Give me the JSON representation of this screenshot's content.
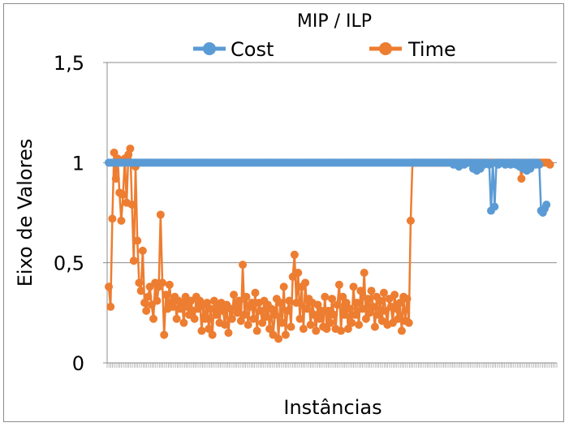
{
  "chart_data": {
    "type": "line",
    "title": "MIP / ILP",
    "xlabel": "Instâncias",
    "ylabel": "Eixo de Valores",
    "ylim": [
      0,
      1.5
    ],
    "yticks": [
      "0",
      "0,5",
      "1",
      "1,5"
    ],
    "y_tick_values": [
      0,
      0.5,
      1,
      1.5
    ],
    "grid": "horizontal",
    "legend": "top",
    "n_points": 250,
    "series": [
      {
        "name": "Cost",
        "color": "#5b9bd5",
        "values": [
          1,
          1,
          1,
          1,
          1,
          1,
          1,
          1,
          1,
          1,
          1,
          1,
          1,
          1,
          1,
          1,
          1,
          1,
          1,
          1,
          1,
          1,
          1,
          1,
          1,
          1,
          1,
          1,
          1,
          1,
          1,
          1,
          1,
          1,
          1,
          1,
          1,
          1,
          1,
          1,
          1,
          1,
          1,
          1,
          1,
          1,
          1,
          1,
          1,
          1,
          1,
          1,
          1,
          1,
          1,
          1,
          1,
          1,
          1,
          1,
          1,
          1,
          1,
          1,
          1,
          1,
          1,
          1,
          1,
          1,
          1,
          1,
          1,
          1,
          1,
          1,
          1,
          1,
          1,
          1,
          1,
          1,
          1,
          1,
          1,
          1,
          1,
          1,
          1,
          1,
          1,
          1,
          1,
          1,
          1,
          1,
          1,
          1,
          1,
          1,
          1,
          1,
          1,
          1,
          1,
          1,
          1,
          1,
          1,
          1,
          1,
          1,
          1,
          1,
          1,
          1,
          1,
          1,
          1,
          1,
          1,
          1,
          1,
          1,
          1,
          1,
          1,
          1,
          1,
          1,
          1,
          1,
          1,
          1,
          1,
          1,
          1,
          1,
          1,
          1,
          1,
          1,
          1,
          1,
          1,
          1,
          1,
          1,
          1,
          1,
          1,
          1,
          1,
          1,
          1,
          1,
          1,
          1,
          1,
          1,
          1,
          1,
          1,
          1,
          1,
          1,
          1,
          1,
          1,
          1,
          1,
          1,
          1,
          1,
          1,
          1,
          1,
          1,
          1,
          1,
          1,
          1,
          1,
          1,
          1,
          1,
          1,
          1,
          1,
          1,
          1,
          1,
          1,
          0.99,
          1,
          1,
          0.98,
          1,
          1,
          0.99,
          1,
          1,
          1,
          1,
          0.97,
          1,
          0.96,
          1,
          0.97,
          1,
          0.99,
          1,
          1,
          0.99,
          0.76,
          1,
          0.78,
          1,
          0.99,
          1,
          1,
          1,
          0.99,
          1,
          1,
          0.99,
          1,
          1,
          0.99,
          1,
          0.98,
          1,
          0.97,
          1,
          0.96,
          1,
          0.97,
          1,
          1,
          0.99,
          1,
          0.99,
          0.76,
          0.75,
          0.77,
          0.79
        ]
      },
      {
        "name": "Time",
        "color": "#ed7d31",
        "values": [
          0.38,
          0.28,
          0.72,
          1.05,
          0.92,
          1.02,
          0.85,
          0.71,
          0.84,
          1.02,
          0.8,
          1.04,
          1.07,
          0.79,
          0.51,
          0.98,
          0.61,
          0.4,
          0.36,
          0.56,
          0.3,
          0.26,
          0.33,
          0.38,
          0.29,
          0.22,
          0.4,
          0.31,
          0.38,
          0.74,
          0.4,
          0.14,
          0.34,
          0.27,
          0.39,
          0.3,
          0.28,
          0.33,
          0.22,
          0.31,
          0.27,
          0.3,
          0.2,
          0.33,
          0.28,
          0.24,
          0.31,
          0.26,
          0.22,
          0.33,
          0.27,
          0.31,
          0.16,
          0.29,
          0.22,
          0.3,
          0.17,
          0.27,
          0.14,
          0.31,
          0.24,
          0.28,
          0.2,
          0.3,
          0.26,
          0.19,
          0.29,
          0.15,
          0.27,
          0.22,
          0.34,
          0.28,
          0.25,
          0.31,
          0.21,
          0.49,
          0.24,
          0.33,
          0.19,
          0.28,
          0.3,
          0.22,
          0.35,
          0.16,
          0.3,
          0.26,
          0.2,
          0.31,
          0.23,
          0.29,
          0.17,
          0.27,
          0.14,
          0.24,
          0.32,
          0.12,
          0.3,
          0.2,
          0.38,
          0.14,
          0.26,
          0.31,
          0.18,
          0.43,
          0.54,
          0.3,
          0.45,
          0.22,
          0.38,
          0.17,
          0.4,
          0.27,
          0.32,
          0.19,
          0.3,
          0.24,
          0.16,
          0.29,
          0.22,
          0.26,
          0.18,
          0.33,
          0.17,
          0.26,
          0.2,
          0.32,
          0.24,
          0.17,
          0.29,
          0.39,
          0.16,
          0.33,
          0.24,
          0.3,
          0.17,
          0.27,
          0.2,
          0.38,
          0.24,
          0.3,
          0.19,
          0.36,
          0.27,
          0.45,
          0.22,
          0.32,
          0.25,
          0.36,
          0.28,
          0.18,
          0.33,
          0.24,
          0.31,
          0.21,
          0.35,
          0.26,
          0.19,
          0.32,
          0.28,
          0.2,
          0.34,
          0.27,
          0.22,
          0.3,
          0.16,
          0.33,
          0.21,
          0.32,
          0.2,
          0.71,
          1.0,
          1.0,
          1.0,
          1.0,
          1.0,
          1.0,
          1.0,
          1.0,
          1.0,
          1.0,
          1.0,
          1.0,
          1.0,
          1.0,
          1.0,
          1.0,
          1.0,
          1.0,
          1.0,
          1.0,
          1.0,
          1.0,
          1.0,
          1.0,
          1.0,
          1.0,
          1.0,
          1.0,
          1.0,
          1.0,
          1.0,
          1.0,
          1.0,
          1.0,
          1.0,
          1.0,
          1.0,
          1.0,
          1.0,
          1.0,
          1.0,
          1.0,
          1.0,
          1.0,
          1.0,
          1.0,
          1.0,
          1.0,
          1.0,
          1.0,
          1.0,
          1.0,
          1.0,
          1.0,
          1.0,
          1.0,
          1.0,
          1.0,
          1.0,
          1.0,
          1.0,
          0.92,
          1.0,
          1.0,
          1.0,
          1.0,
          1.0,
          1.0,
          1.0,
          1.0,
          1.0,
          1.0,
          1.0,
          1.0,
          1.0,
          1.0,
          1.0,
          0.99
        ]
      }
    ]
  }
}
